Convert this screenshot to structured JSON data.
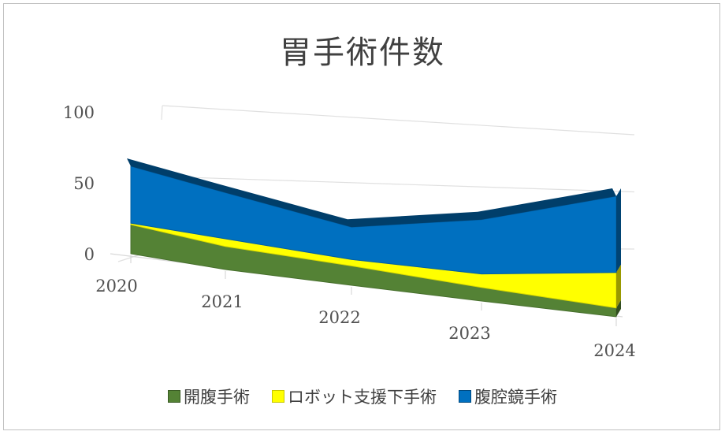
{
  "chart_data": {
    "type": "area",
    "stacked": true,
    "three_d": true,
    "title": "胃手術件数",
    "categories": [
      "2020",
      "2021",
      "2022",
      "2023",
      "2024"
    ],
    "ylim": [
      0,
      100
    ],
    "yticks": [
      0,
      50,
      100
    ],
    "xlabel": "",
    "ylabel": "",
    "legend_position": "bottom",
    "series": [
      {
        "name": "開腹手術",
        "values": [
          20,
          15,
          12,
          8,
          5
        ],
        "color": "#548235"
      },
      {
        "name": "ロボット支援下手術",
        "values": [
          1,
          5,
          4,
          8,
          20
        ],
        "color": "#ffff00"
      },
      {
        "name": "腹腔鏡手術",
        "values": [
          39,
          30,
          20,
          32,
          43
        ],
        "color": "#0070c0"
      }
    ]
  }
}
